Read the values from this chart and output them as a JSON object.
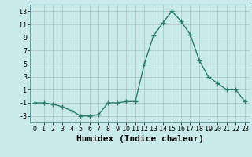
{
  "x": [
    0,
    1,
    2,
    3,
    4,
    5,
    6,
    7,
    8,
    9,
    10,
    11,
    12,
    13,
    14,
    15,
    16,
    17,
    18,
    19,
    20,
    21,
    22,
    23
  ],
  "y": [
    -1,
    -1,
    -1.2,
    -1.6,
    -2.2,
    -3,
    -3,
    -2.8,
    -1,
    -1,
    -0.8,
    -0.8,
    5,
    9.3,
    11.2,
    13,
    11.5,
    9.5,
    5.5,
    3,
    2,
    1,
    1,
    -0.8
  ],
  "line_color": "#2d7d6e",
  "marker": "+",
  "marker_size": 4,
  "bg_color": "#c8eaea",
  "grid_color": "#aabfbf",
  "xlabel": "Humidex (Indice chaleur)",
  "xlabel_fontsize": 8,
  "ylim": [
    -4,
    14
  ],
  "xlim": [
    -0.5,
    23.5
  ],
  "yticks": [
    -3,
    -1,
    1,
    3,
    5,
    7,
    9,
    11,
    13
  ],
  "xticks": [
    0,
    1,
    2,
    3,
    4,
    5,
    6,
    7,
    8,
    9,
    10,
    11,
    12,
    13,
    14,
    15,
    16,
    17,
    18,
    19,
    20,
    21,
    22,
    23
  ]
}
